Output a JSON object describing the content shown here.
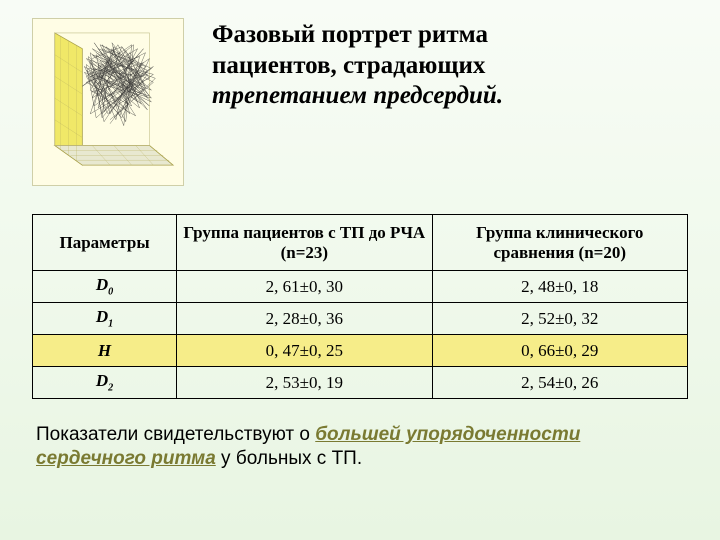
{
  "title_line1": "Фазовый портрет ритма",
  "title_line2": "пациентов, страдающих",
  "title_line3": "трепетанием предсердий.",
  "table": {
    "headers": {
      "col0": "Параметры",
      "col1": "Группа пациентов с ТП до РЧА (n=23)",
      "col2": "Группа клинического сравнения (n=20)"
    },
    "rows": [
      {
        "param_html": "D<sub>0</sub>",
        "v1": "2, 61±0, 30",
        "v2": "2, 48±0, 18",
        "highlight": false
      },
      {
        "param_html": "D<sub>1</sub>",
        "v1": "2, 28±0, 36",
        "v2": "2, 52±0, 32",
        "highlight": false
      },
      {
        "param_html": "H",
        "v1": "0, 47±0, 25",
        "v2": "0, 66±0, 29",
        "highlight": true
      },
      {
        "param_html": "D<sub>2</sub>",
        "v1": "2, 53±0, 19",
        "v2": "2, 54±0, 26",
        "highlight": false
      }
    ]
  },
  "footer": {
    "pre": "Показатели свидетельствуют о ",
    "emph": "большей упорядоченности сердечного ритма",
    "post": " у больных с ТП."
  },
  "figure": {
    "background": "#fffde5",
    "wall_left": "#f0e868",
    "wall_floor": "#e8e8d0",
    "axis_color": "#808060",
    "scribble_color": "#2a2a2a",
    "scribble_width": 0.4
  }
}
